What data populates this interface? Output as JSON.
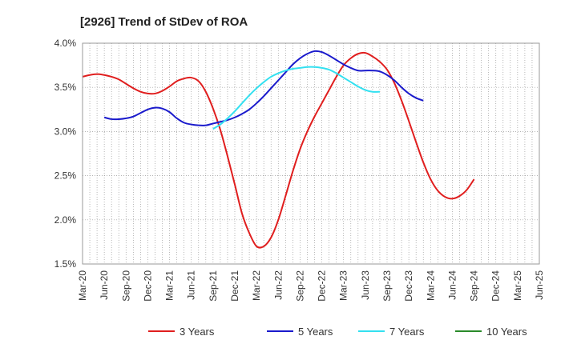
{
  "chart_data": {
    "type": "line",
    "title": "[2926]  Trend of StDev of ROA",
    "xlabel": "",
    "ylabel": "",
    "ylim": [
      1.5,
      4.0
    ],
    "grid": true,
    "legend_position": "bottom",
    "x_ticks": [
      "Mar-20",
      "Jun-20",
      "Sep-20",
      "Dec-20",
      "Mar-21",
      "Jun-21",
      "Sep-21",
      "Dec-21",
      "Mar-22",
      "Jun-22",
      "Sep-22",
      "Dec-22",
      "Mar-23",
      "Jun-23",
      "Sep-23",
      "Dec-23",
      "Mar-24",
      "Jun-24",
      "Sep-24",
      "Dec-24",
      "Mar-25",
      "Jun-25"
    ],
    "y_ticks": [
      "1.5%",
      "2.0%",
      "2.5%",
      "3.0%",
      "3.5%",
      "4.0%"
    ],
    "series": [
      {
        "name": "3 Years",
        "color": "#e01e1e",
        "points": [
          [
            "Mar-20",
            3.62
          ],
          [
            "Apr-20",
            3.64
          ],
          [
            "May-20",
            3.65
          ],
          [
            "Jun-20",
            3.64
          ],
          [
            "Jul-20",
            3.62
          ],
          [
            "Aug-20",
            3.59
          ],
          [
            "Sep-20",
            3.54
          ],
          [
            "Oct-20",
            3.49
          ],
          [
            "Nov-20",
            3.45
          ],
          [
            "Dec-20",
            3.43
          ],
          [
            "Jan-21",
            3.43
          ],
          [
            "Feb-21",
            3.46
          ],
          [
            "Mar-21",
            3.51
          ],
          [
            "Apr-21",
            3.57
          ],
          [
            "May-21",
            3.6
          ],
          [
            "Jun-21",
            3.61
          ],
          [
            "Jul-21",
            3.57
          ],
          [
            "Aug-21",
            3.45
          ],
          [
            "Sep-21",
            3.26
          ],
          [
            "Oct-21",
            3.02
          ],
          [
            "Nov-21",
            2.72
          ],
          [
            "Dec-21",
            2.4
          ],
          [
            "Jan-22",
            2.07
          ],
          [
            "Feb-22",
            1.85
          ],
          [
            "Mar-22",
            1.7
          ],
          [
            "Apr-22",
            1.7
          ],
          [
            "May-22",
            1.8
          ],
          [
            "Jun-22",
            2.0
          ],
          [
            "Jul-22",
            2.27
          ],
          [
            "Aug-22",
            2.55
          ],
          [
            "Sep-22",
            2.8
          ],
          [
            "Oct-22",
            3.0
          ],
          [
            "Nov-22",
            3.17
          ],
          [
            "Dec-22",
            3.32
          ],
          [
            "Jan-23",
            3.47
          ],
          [
            "Feb-23",
            3.62
          ],
          [
            "Mar-23",
            3.75
          ],
          [
            "Apr-23",
            3.83
          ],
          [
            "May-23",
            3.88
          ],
          [
            "Jun-23",
            3.89
          ],
          [
            "Jul-23",
            3.85
          ],
          [
            "Aug-23",
            3.79
          ],
          [
            "Sep-23",
            3.7
          ],
          [
            "Oct-23",
            3.55
          ],
          [
            "Nov-23",
            3.35
          ],
          [
            "Dec-23",
            3.12
          ],
          [
            "Jan-24",
            2.88
          ],
          [
            "Feb-24",
            2.65
          ],
          [
            "Mar-24",
            2.46
          ],
          [
            "Apr-24",
            2.33
          ],
          [
            "May-24",
            2.26
          ],
          [
            "Jun-24",
            2.24
          ],
          [
            "Jul-24",
            2.27
          ],
          [
            "Aug-24",
            2.34
          ],
          [
            "Sep-24",
            2.46
          ]
        ]
      },
      {
        "name": "5 Years",
        "color": "#1a1acc",
        "points": [
          [
            "Jun-20",
            3.16
          ],
          [
            "Jul-20",
            3.14
          ],
          [
            "Aug-20",
            3.14
          ],
          [
            "Sep-20",
            3.15
          ],
          [
            "Oct-20",
            3.17
          ],
          [
            "Nov-20",
            3.21
          ],
          [
            "Dec-20",
            3.25
          ],
          [
            "Jan-21",
            3.27
          ],
          [
            "Feb-21",
            3.26
          ],
          [
            "Mar-21",
            3.22
          ],
          [
            "Apr-21",
            3.15
          ],
          [
            "May-21",
            3.1
          ],
          [
            "Jun-21",
            3.08
          ],
          [
            "Jul-21",
            3.07
          ],
          [
            "Aug-21",
            3.07
          ],
          [
            "Sep-21",
            3.09
          ],
          [
            "Oct-21",
            3.11
          ],
          [
            "Nov-21",
            3.13
          ],
          [
            "Dec-21",
            3.16
          ],
          [
            "Jan-22",
            3.2
          ],
          [
            "Feb-22",
            3.25
          ],
          [
            "Mar-22",
            3.32
          ],
          [
            "Apr-22",
            3.4
          ],
          [
            "May-22",
            3.49
          ],
          [
            "Jun-22",
            3.58
          ],
          [
            "Jul-22",
            3.67
          ],
          [
            "Aug-22",
            3.76
          ],
          [
            "Sep-22",
            3.83
          ],
          [
            "Oct-22",
            3.88
          ],
          [
            "Nov-22",
            3.91
          ],
          [
            "Dec-22",
            3.9
          ],
          [
            "Jan-23",
            3.86
          ],
          [
            "Feb-23",
            3.81
          ],
          [
            "Mar-23",
            3.76
          ],
          [
            "Apr-23",
            3.72
          ],
          [
            "May-23",
            3.69
          ],
          [
            "Jun-23",
            3.69
          ],
          [
            "Jul-23",
            3.69
          ],
          [
            "Aug-23",
            3.68
          ],
          [
            "Sep-23",
            3.64
          ],
          [
            "Oct-23",
            3.58
          ],
          [
            "Nov-23",
            3.5
          ],
          [
            "Dec-23",
            3.43
          ],
          [
            "Jan-24",
            3.38
          ],
          [
            "Feb-24",
            3.35
          ]
        ]
      },
      {
        "name": "7 Years",
        "color": "#33e0f0",
        "points": [
          [
            "Sep-21",
            3.03
          ],
          [
            "Oct-21",
            3.08
          ],
          [
            "Nov-21",
            3.15
          ],
          [
            "Dec-21",
            3.23
          ],
          [
            "Jan-22",
            3.32
          ],
          [
            "Feb-22",
            3.41
          ],
          [
            "Mar-22",
            3.49
          ],
          [
            "Apr-22",
            3.56
          ],
          [
            "May-22",
            3.62
          ],
          [
            "Jun-22",
            3.66
          ],
          [
            "Jul-22",
            3.69
          ],
          [
            "Aug-22",
            3.71
          ],
          [
            "Sep-22",
            3.72
          ],
          [
            "Oct-22",
            3.73
          ],
          [
            "Nov-22",
            3.73
          ],
          [
            "Dec-22",
            3.72
          ],
          [
            "Jan-23",
            3.7
          ],
          [
            "Feb-23",
            3.66
          ],
          [
            "Mar-23",
            3.61
          ],
          [
            "Apr-23",
            3.56
          ],
          [
            "May-23",
            3.51
          ],
          [
            "Jun-23",
            3.47
          ],
          [
            "Jul-23",
            3.45
          ],
          [
            "Aug-23",
            3.45
          ]
        ]
      },
      {
        "name": "10 Years",
        "color": "#2a8a2a",
        "points": []
      }
    ]
  }
}
